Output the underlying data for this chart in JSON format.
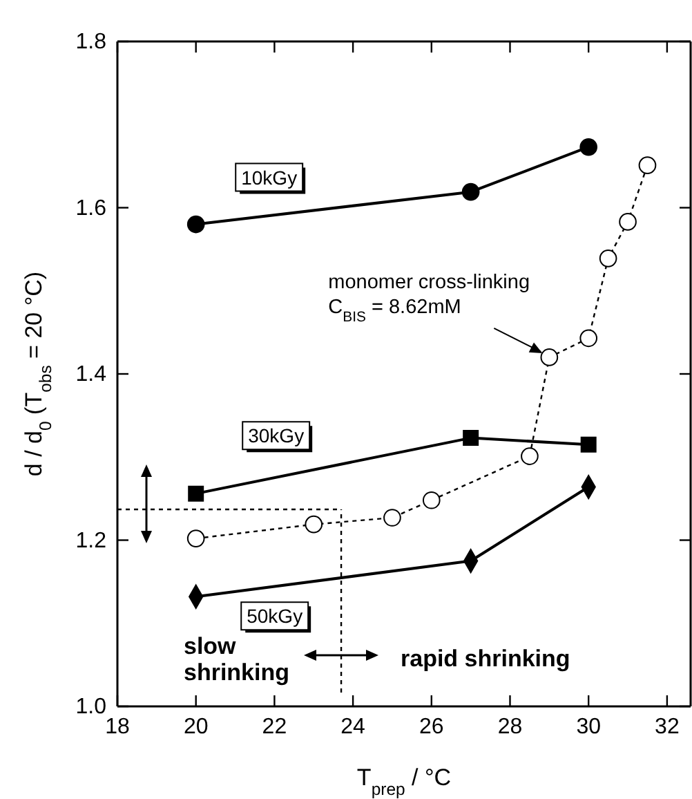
{
  "chart_data": {
    "type": "line",
    "xlabel": "T$_{prep}$ / °C",
    "ylabel": "d / d$_{0}$ (T$_{obs}$ = 20 °C)",
    "xlim": [
      18,
      32.6
    ],
    "xticks": [
      18,
      20,
      22,
      24,
      26,
      28,
      30,
      32
    ],
    "ylim": [
      1.0,
      1.8
    ],
    "yticks": [
      {
        "value": 1.0,
        "label": "1.0"
      },
      1.2,
      1.4,
      1.6,
      1.8
    ],
    "grid": false,
    "series": [
      {
        "name": "10kGy",
        "color": "#000000",
        "marker": "circle",
        "line_style": "solid",
        "x": [
          20,
          27,
          30
        ],
        "values": [
          1.58,
          1.619,
          1.673
        ]
      },
      {
        "name": "30kGy",
        "color": "#000000",
        "marker": "square",
        "line_style": "solid",
        "x": [
          20,
          27,
          30
        ],
        "values": [
          1.256,
          1.323,
          1.315
        ]
      },
      {
        "name": "50kGy",
        "color": "#000000",
        "marker": "diamond",
        "line_style": "solid",
        "x": [
          20,
          27,
          30
        ],
        "values": [
          1.132,
          1.175,
          1.264
        ]
      },
      {
        "color": "#000000",
        "marker": "circle",
        "line_style": "dotted",
        "x": [
          20,
          23,
          25,
          26,
          28.5,
          29,
          30,
          30.5,
          31,
          31.5
        ],
        "values": [
          1.202,
          1.219,
          1.227,
          1.248,
          1.301,
          1.42,
          1.443,
          1.539,
          1.583,
          1.651
        ]
      }
    ],
    "ref_lines": [
      {
        "axis": "y",
        "value": 1.237,
        "line_style": "dotted"
      },
      {
        "axis": "x",
        "value": 23.7,
        "line_style": "dotted"
      }
    ],
    "annotations": [
      {
        "text": "monomer cross-linking\nC$_{BIS}$ = 8.62mM",
        "x": 29,
        "y": 1.42
      },
      "slow\nshrinking",
      "rapid shrinking"
    ]
  }
}
